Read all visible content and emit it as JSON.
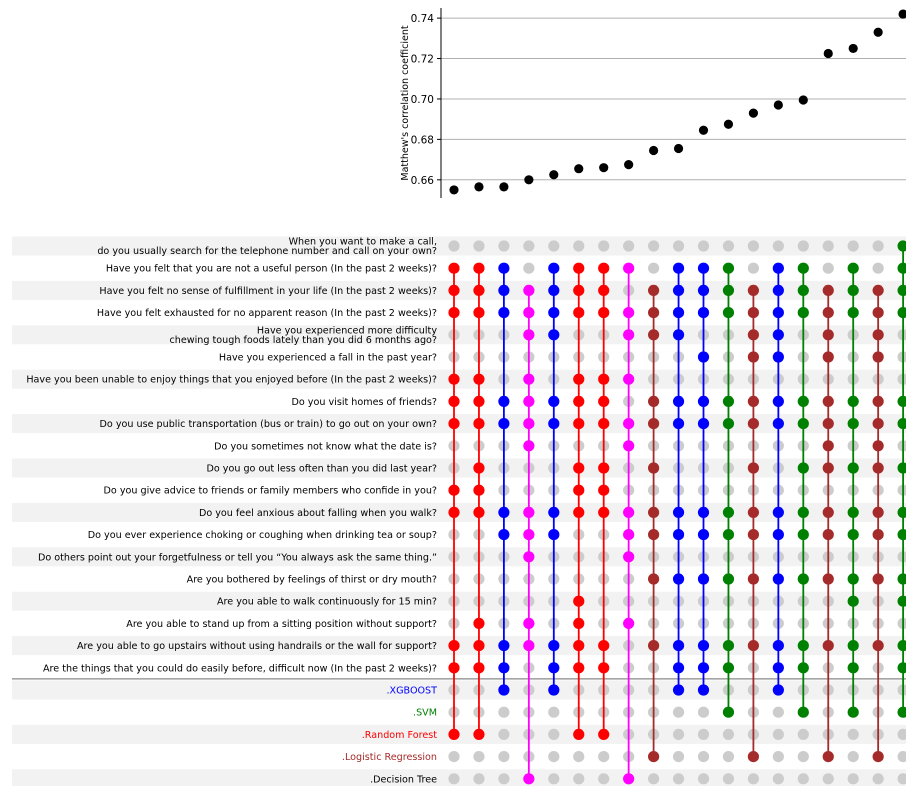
{
  "chart_data": [
    {
      "type": "scatter",
      "title": "",
      "xlabel": "",
      "ylabel": "Matthew's correlation coefficient",
      "ylim": [
        0.651,
        0.745
      ],
      "yticks": [
        0.66,
        0.68,
        0.7,
        0.72,
        0.74
      ],
      "ytick_labels": [
        "0.66",
        "0.68",
        "0.70",
        "0.72",
        "0.74"
      ],
      "grid": "horizontal",
      "colors": {
        "marker": "#000000",
        "grid": "#b0b0b0"
      },
      "values": [
        0.655,
        0.6565,
        0.6565,
        0.66,
        0.6625,
        0.6655,
        0.666,
        0.6675,
        0.6745,
        0.6755,
        0.6845,
        0.6875,
        0.693,
        0.697,
        0.6995,
        0.7225,
        0.725,
        0.733,
        0.742
      ]
    },
    {
      "type": "table",
      "title": "",
      "colors": {
        "inactive": "#cccccc",
        "XGBOOST": "#0000ff",
        "SVM": "#008000",
        "Random Forest": "#ff0000",
        "Logistic Regression": "#a52a2a",
        "Decision Tree": "#ff00ff",
        "row_shade": "#f2f2f2",
        "separator": "#888888"
      },
      "questions": [
        "When you want to make a call,\ndo you usually search for the telephone number and call on your own?",
        "Have you felt that you are not a useful person (In the past 2 weeks)?",
        "Have you felt no sense of fulfillment in your life (In the past 2 weeks)?",
        "Have you felt exhausted for no apparent reason (In the past 2 weeks)?",
        "Have you experienced more difficulty\nchewing tough foods lately than you did 6 months ago?",
        "Have you experienced a fall in the past year?",
        "Have you been unable to enjoy things that you enjoyed before (In the past 2 weeks)?",
        "Do you visit homes of friends?",
        "Do you use public transportation (bus or train) to go out on your own?",
        "Do you sometimes not know what the date is?",
        "Do you go out less often than you did last year?",
        "Do you give advice to friends or family members who confide in you?",
        "Do you feel anxious about falling when you walk?",
        "Do you ever experience choking or coughing when drinking tea or soup?",
        "Do others point out your forgetfulness or tell you “You always ask the same thing.”",
        "Are you bothered by feelings of thirst or dry mouth?",
        "Are you able to walk continuously for 15 min?",
        "Are you able to stand up from a sitting position without support?",
        "Are you able to go upstairs without using handrails or the wall for support?",
        "Are the things that you could do easily before, difficult now (In the past 2 weeks)?"
      ],
      "models": [
        ".XGBOOST",
        ".SVM",
        ".Random Forest",
        ".Logistic Regression",
        ".Decision Tree"
      ],
      "model_keys": [
        "XGBOOST",
        "SVM",
        "Random Forest",
        "Logistic Regression",
        "Decision Tree"
      ],
      "columns": [
        {
          "model": "Random Forest",
          "features": [
            1,
            2,
            3,
            6,
            7,
            8,
            11,
            12,
            18,
            19
          ]
        },
        {
          "model": "Random Forest",
          "features": [
            1,
            2,
            3,
            6,
            7,
            8,
            10,
            11,
            12,
            17,
            18,
            19
          ]
        },
        {
          "model": "XGBOOST",
          "features": [
            1,
            2,
            3,
            7,
            8,
            12,
            13,
            18,
            19
          ]
        },
        {
          "model": "Decision Tree",
          "features": [
            2,
            3,
            4,
            6,
            7,
            8,
            9,
            12,
            13,
            14,
            17,
            18
          ]
        },
        {
          "model": "XGBOOST",
          "features": [
            1,
            2,
            3,
            4,
            7,
            8,
            12,
            13,
            18,
            19
          ]
        },
        {
          "model": "Random Forest",
          "features": [
            1,
            2,
            3,
            6,
            7,
            8,
            10,
            11,
            12,
            16,
            17,
            18,
            19
          ]
        },
        {
          "model": "Random Forest",
          "features": [
            1,
            2,
            3,
            6,
            7,
            8,
            10,
            11,
            12,
            18,
            19
          ]
        },
        {
          "model": "Decision Tree",
          "features": [
            1,
            3,
            4,
            6,
            8,
            9,
            12,
            13,
            14,
            17
          ]
        },
        {
          "model": "Logistic Regression",
          "features": [
            2,
            3,
            4,
            7,
            8,
            10,
            12,
            13,
            15,
            18
          ]
        },
        {
          "model": "XGBOOST",
          "features": [
            1,
            2,
            3,
            4,
            7,
            8,
            12,
            13,
            15,
            18,
            19
          ]
        },
        {
          "model": "XGBOOST",
          "features": [
            1,
            2,
            3,
            5,
            7,
            8,
            12,
            13,
            15,
            18,
            19
          ]
        },
        {
          "model": "SVM",
          "features": [
            1,
            2,
            3,
            7,
            8,
            12,
            13,
            15,
            18,
            19
          ]
        },
        {
          "model": "Logistic Regression",
          "features": [
            2,
            3,
            4,
            5,
            7,
            8,
            10,
            12,
            13,
            15,
            18
          ]
        },
        {
          "model": "XGBOOST",
          "features": [
            1,
            2,
            3,
            4,
            5,
            7,
            8,
            12,
            13,
            15,
            18,
            19
          ]
        },
        {
          "model": "SVM",
          "features": [
            1,
            2,
            3,
            7,
            8,
            10,
            12,
            13,
            15,
            18,
            19
          ]
        },
        {
          "model": "Logistic Regression",
          "features": [
            2,
            3,
            4,
            5,
            7,
            8,
            9,
            10,
            12,
            13,
            15,
            18
          ]
        },
        {
          "model": "SVM",
          "features": [
            1,
            2,
            3,
            7,
            8,
            10,
            12,
            13,
            15,
            16,
            18,
            19
          ]
        },
        {
          "model": "Logistic Regression",
          "features": [
            2,
            3,
            4,
            5,
            7,
            8,
            9,
            10,
            12,
            13,
            15,
            18
          ]
        },
        {
          "model": "SVM",
          "features": [
            0,
            1,
            2,
            3,
            7,
            8,
            10,
            12,
            13,
            15,
            16,
            18,
            19
          ]
        }
      ]
    }
  ]
}
